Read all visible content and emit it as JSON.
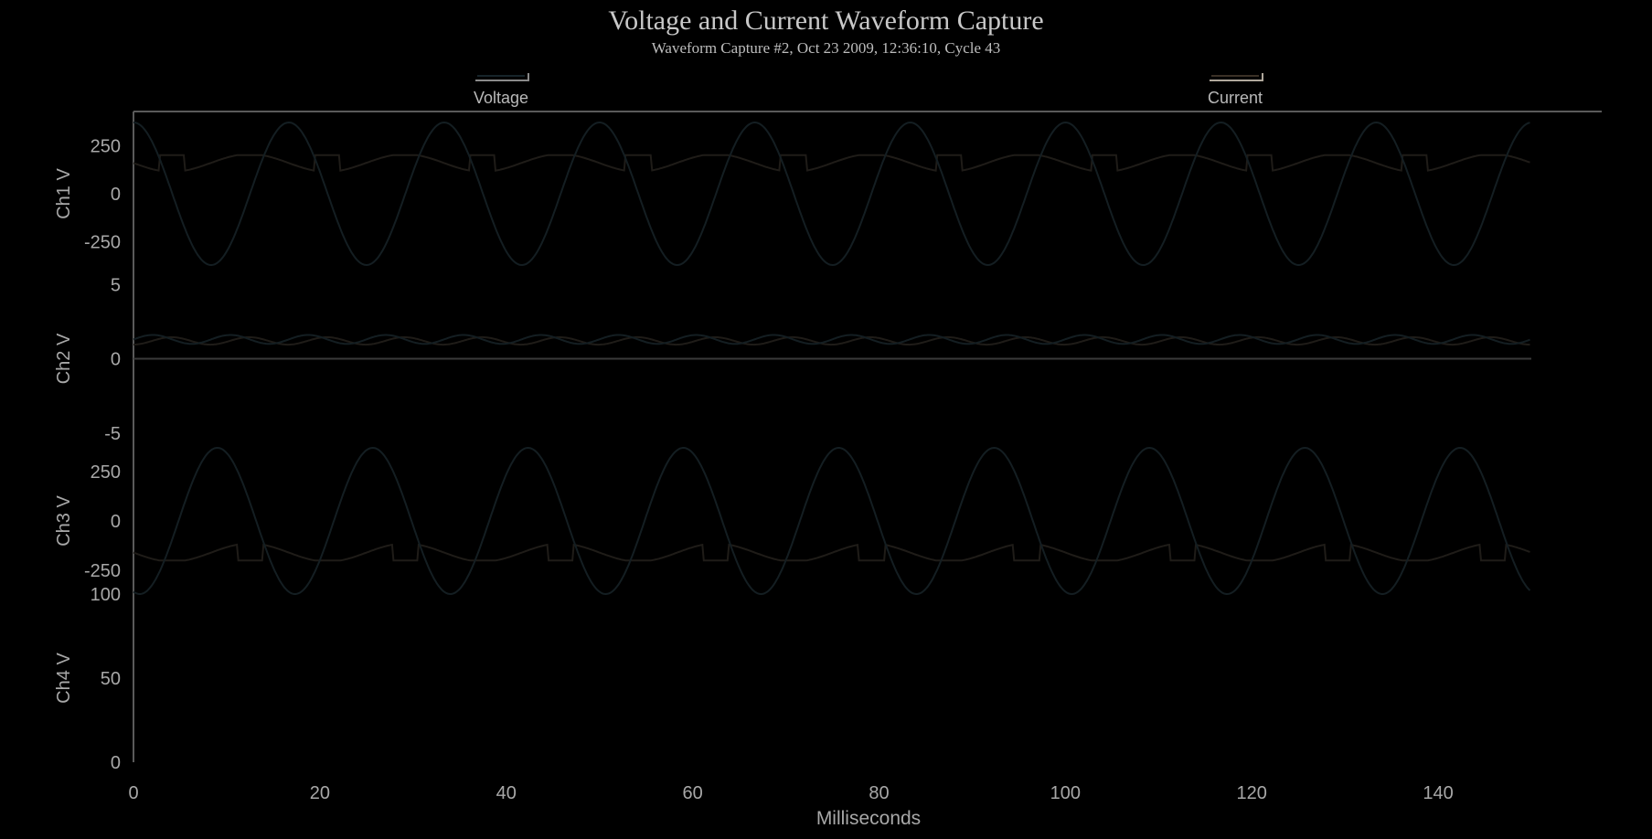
{
  "chart_data": {
    "type": "line",
    "title": "Voltage and Current Waveform Capture",
    "subtitle": "Waveform Capture #2, Oct 23 2009, 12:36:10,  Cycle 43",
    "xlabel": "Milliseconds",
    "x_ticks": [
      0,
      20,
      40,
      60,
      80,
      100,
      120,
      140
    ],
    "xlim": [
      0,
      150
    ],
    "legend": {
      "placement": "top",
      "entries": [
        {
          "name": "Voltage",
          "color": "#16242a"
        },
        {
          "name": "Current",
          "color": "#3a3026"
        }
      ]
    },
    "panels": [
      {
        "ylabel": "Ch1 V",
        "ylim": [
          -370,
          370
        ],
        "y_ticks": [
          250,
          0,
          -250
        ],
        "voltage": {
          "type": "sine",
          "amplitude": 370,
          "period_ms": 16.67,
          "phase_ms": 0
        },
        "current": {
          "type": "flat_top",
          "level": 200,
          "amplitude": 230,
          "period_ms": 16.67,
          "phase_ms": 8.3
        }
      },
      {
        "ylabel": "Ch2 V",
        "ylim": [
          -6,
          6
        ],
        "y_ticks": [
          5,
          0,
          -5
        ],
        "voltage": {
          "type": "ripple",
          "offset": 1.3,
          "amplitude": 0.3,
          "period_ms": 8.33,
          "phase_ms": 0
        },
        "current": {
          "type": "ripple",
          "offset": 1.2,
          "amplitude": 0.25,
          "period_ms": 8.33,
          "phase_ms": 2
        },
        "zero_line": true
      },
      {
        "ylabel": "Ch3 V",
        "ylim": [
          -370,
          370
        ],
        "y_ticks": [
          250,
          0,
          -250
        ],
        "voltage": {
          "type": "sine",
          "amplitude": 370,
          "period_ms": 16.67,
          "phase_ms": 9
        },
        "current": {
          "type": "flat_top",
          "level": -200,
          "amplitude": -230,
          "period_ms": 16.67,
          "phase_ms": 0
        }
      },
      {
        "ylabel": "Ch4 V",
        "ylim": [
          0,
          100
        ],
        "y_ticks": [
          100,
          50,
          0
        ]
      }
    ]
  }
}
